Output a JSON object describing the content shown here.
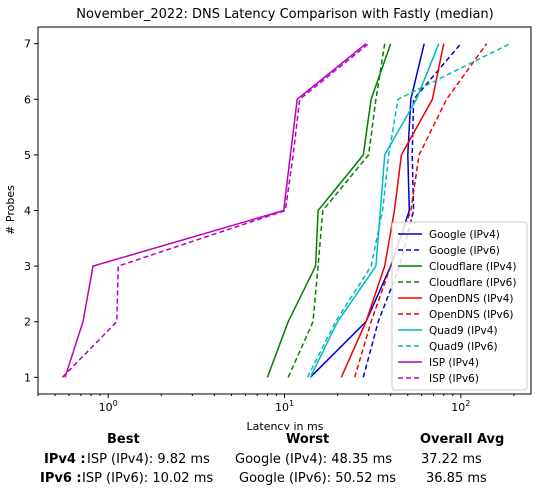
{
  "chart_data": {
    "type": "line",
    "title": "November_2022: DNS Latency Comparison with Fastly (median)",
    "xlabel": "Latency in ms",
    "ylabel": "# Probes",
    "xscale": "log",
    "xlim": [
      0.4,
      250
    ],
    "ylim": [
      0.7,
      7.3
    ],
    "xticks": [
      {
        "value": 1,
        "label": "10",
        "sup": "0"
      },
      {
        "value": 10,
        "label": "10",
        "sup": "1"
      },
      {
        "value": 100,
        "label": "10",
        "sup": "2"
      }
    ],
    "yticks": [
      1,
      2,
      3,
      4,
      5,
      6,
      7
    ],
    "grid": false,
    "legend": "lower-right",
    "y": [
      1,
      2,
      3,
      4,
      5,
      6,
      7
    ],
    "series": [
      {
        "name": "Google (IPv4)",
        "color": "#0000cc",
        "dash": "solid",
        "x": [
          14,
          29,
          40,
          51,
          50,
          52,
          62
        ]
      },
      {
        "name": "Google (IPv6)",
        "color": "#0000cc",
        "dash": "dashed",
        "x": [
          28,
          34,
          45,
          54,
          53,
          54,
          100
        ]
      },
      {
        "name": "Cloudflare (IPv4)",
        "color": "#008000",
        "dash": "solid",
        "x": [
          8,
          10.5,
          15,
          15.5,
          28,
          31,
          40
        ]
      },
      {
        "name": "Cloudflare (IPv6)",
        "color": "#008000",
        "dash": "dashed",
        "x": [
          10.5,
          14.5,
          15.5,
          16.5,
          30,
          33,
          37
        ]
      },
      {
        "name": "OpenDNS (IPv4)",
        "color": "#ee0000",
        "dash": "solid",
        "x": [
          21,
          29,
          37,
          42,
          46,
          69,
          80
        ]
      },
      {
        "name": "OpenDNS (IPv6)",
        "color": "#ee0000",
        "dash": "dashed",
        "x": [
          25,
          31,
          40,
          52,
          58,
          83,
          140
        ]
      },
      {
        "name": "Quad9 (IPv4)",
        "color": "#00bbbb",
        "dash": "solid",
        "x": [
          14,
          20,
          33,
          35,
          37,
          56,
          75
        ]
      },
      {
        "name": "Quad9 (IPv6)",
        "color": "#00bbbb",
        "dash": "dashed",
        "x": [
          13.5,
          19.5,
          31,
          36,
          39,
          44,
          190
        ]
      },
      {
        "name": "ISP (IPv4)",
        "color": "#bb00bb",
        "dash": "solid",
        "x": [
          0.57,
          0.72,
          0.82,
          9.9,
          10.8,
          11.8,
          29
        ]
      },
      {
        "name": "ISP (IPv6)",
        "color": "#bb00bb",
        "dash": "dashed",
        "x": [
          0.55,
          1.12,
          1.14,
          10.1,
          11.2,
          12.2,
          30
        ]
      }
    ]
  },
  "summary": {
    "headers": {
      "best": "Best",
      "worst": "Worst",
      "avg": "Overall Avg"
    },
    "rows": [
      {
        "label": "IPv4 :",
        "best": "ISP (IPv4): 9.82 ms",
        "worst": "Google (IPv4): 48.35 ms",
        "avg": "37.22 ms"
      },
      {
        "label": "IPv6 :",
        "best": "ISP (IPv6): 10.02 ms",
        "worst": "Google (IPv6): 50.52 ms",
        "avg": "36.85 ms"
      }
    ]
  }
}
